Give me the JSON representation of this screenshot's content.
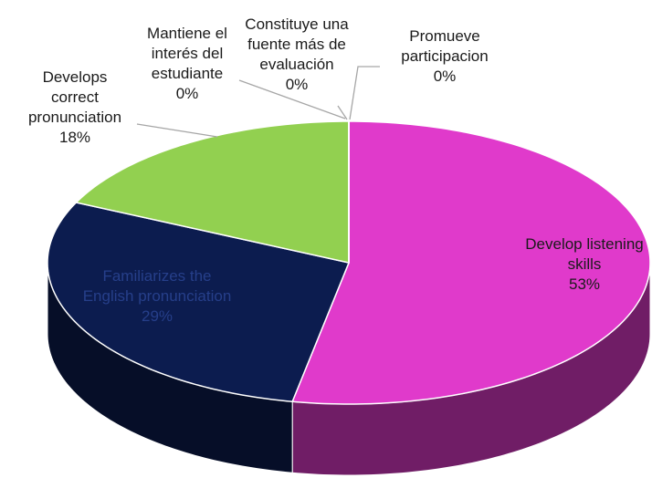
{
  "chart_data": {
    "type": "pie3d",
    "categories": [
      "Develop listening skills",
      "Familiarizes the English pronunciation",
      "Develops correct pronunciation",
      "Mantiene el interés del estudiante",
      "Constituye una fuente más de evaluación",
      "Promueve participacion"
    ],
    "values": [
      53,
      29,
      18,
      0,
      0,
      0
    ],
    "value_labels": [
      "53%",
      "29%",
      "18%",
      "0%",
      "0%",
      "0%"
    ],
    "colors": [
      "#e03acb",
      "#0c1c4f",
      "#92d050",
      "#4f81bd",
      "#c0504d",
      "#f79646"
    ]
  }
}
